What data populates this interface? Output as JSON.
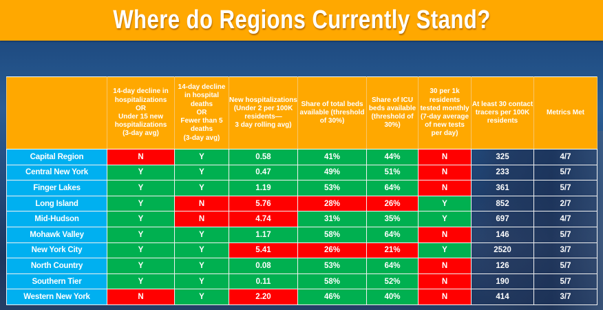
{
  "title": "Where do Regions Currently Stand?",
  "colors": {
    "banner": "#ffa800",
    "header": "#ffa800",
    "region": "#00b0f0",
    "pass": "#00b050",
    "fail": "#ff0000",
    "text": "#ffffff"
  },
  "table": {
    "headers": [
      "",
      "14-day decline in hospitalizations\nOR\nUnder 15 new hospitalizations\n(3-day avg)",
      "14-day decline in hospital deaths\nOR\nFewer than 5 deaths\n(3-day avg)",
      "New hospitalizations (Under 2 per 100K residents—\n3 day rolling avg)",
      "Share of total beds available (threshold of 30%)",
      "Share of ICU beds available (threshold of 30%)",
      "30 per 1k residents tested monthly (7-day average of new tests per day)",
      "At least 30 contact tracers per 100K residents",
      "Metrics Met"
    ],
    "rows": [
      {
        "region": "Capital Region",
        "hosp_decline": "N",
        "deaths_decline": "Y",
        "new_hosp": "0.58",
        "total_beds": "41%",
        "icu_beds": "44%",
        "testing": "N",
        "tracers": "325",
        "met": "4/7",
        "status": [
          "r",
          "g",
          "g",
          "g",
          "g",
          "r"
        ]
      },
      {
        "region": "Central New York",
        "hosp_decline": "Y",
        "deaths_decline": "Y",
        "new_hosp": "0.47",
        "total_beds": "49%",
        "icu_beds": "51%",
        "testing": "N",
        "tracers": "233",
        "met": "5/7",
        "status": [
          "g",
          "g",
          "g",
          "g",
          "g",
          "r"
        ]
      },
      {
        "region": "Finger Lakes",
        "hosp_decline": "Y",
        "deaths_decline": "Y",
        "new_hosp": "1.19",
        "total_beds": "53%",
        "icu_beds": "64%",
        "testing": "N",
        "tracers": "361",
        "met": "5/7",
        "status": [
          "g",
          "g",
          "g",
          "g",
          "g",
          "r"
        ]
      },
      {
        "region": "Long Island",
        "hosp_decline": "Y",
        "deaths_decline": "N",
        "new_hosp": "5.76",
        "total_beds": "28%",
        "icu_beds": "26%",
        "testing": "Y",
        "tracers": "852",
        "met": "2/7",
        "status": [
          "g",
          "r",
          "r",
          "r",
          "r",
          "g"
        ]
      },
      {
        "region": "Mid-Hudson",
        "hosp_decline": "Y",
        "deaths_decline": "N",
        "new_hosp": "4.74",
        "total_beds": "31%",
        "icu_beds": "35%",
        "testing": "Y",
        "tracers": "697",
        "met": "4/7",
        "status": [
          "g",
          "r",
          "r",
          "g",
          "g",
          "g"
        ]
      },
      {
        "region": "Mohawk Valley",
        "hosp_decline": "Y",
        "deaths_decline": "Y",
        "new_hosp": "1.17",
        "total_beds": "58%",
        "icu_beds": "64%",
        "testing": "N",
        "tracers": "146",
        "met": "5/7",
        "status": [
          "g",
          "g",
          "g",
          "g",
          "g",
          "r"
        ]
      },
      {
        "region": "New York City",
        "hosp_decline": "Y",
        "deaths_decline": "Y",
        "new_hosp": "5.41",
        "total_beds": "26%",
        "icu_beds": "21%",
        "testing": "Y",
        "tracers": "2520",
        "met": "3/7",
        "status": [
          "g",
          "g",
          "r",
          "r",
          "r",
          "g"
        ]
      },
      {
        "region": "North Country",
        "hosp_decline": "Y",
        "deaths_decline": "Y",
        "new_hosp": "0.08",
        "total_beds": "53%",
        "icu_beds": "64%",
        "testing": "N",
        "tracers": "126",
        "met": "5/7",
        "status": [
          "g",
          "g",
          "g",
          "g",
          "g",
          "r"
        ]
      },
      {
        "region": "Southern Tier",
        "hosp_decline": "Y",
        "deaths_decline": "Y",
        "new_hosp": "0.11",
        "total_beds": "58%",
        "icu_beds": "52%",
        "testing": "N",
        "tracers": "190",
        "met": "5/7",
        "status": [
          "g",
          "g",
          "g",
          "g",
          "g",
          "r"
        ]
      },
      {
        "region": "Western New York",
        "hosp_decline": "N",
        "deaths_decline": "Y",
        "new_hosp": "2.20",
        "total_beds": "46%",
        "icu_beds": "40%",
        "testing": "N",
        "tracers": "414",
        "met": "3/7",
        "status": [
          "r",
          "g",
          "r",
          "g",
          "g",
          "r"
        ]
      }
    ]
  }
}
